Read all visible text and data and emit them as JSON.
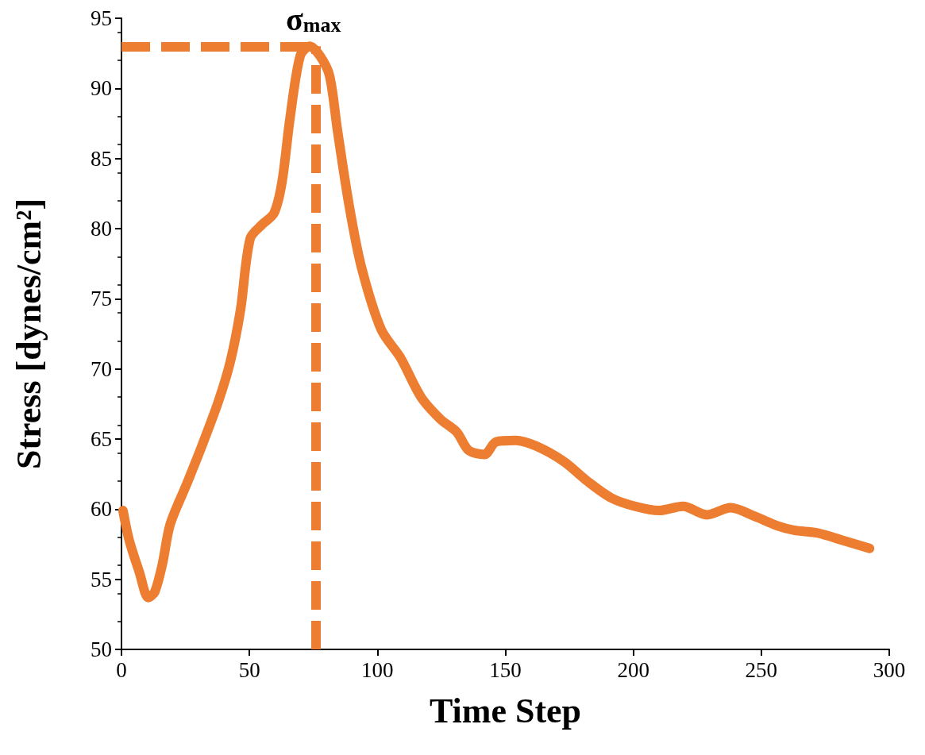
{
  "chart_data": {
    "type": "line",
    "xlabel": "Time Step",
    "ylabel": "Stress [dynes/cm²]",
    "x": [
      0.6,
      3,
      7,
      10.5,
      13,
      16,
      19,
      25.5,
      31.6,
      37.9,
      42.5,
      46.5,
      50.3,
      55,
      59.6,
      62.7,
      65.8,
      69.8,
      73.5,
      77.6,
      81.3,
      84.4,
      89,
      93.7,
      101.5,
      109,
      117,
      124.7,
      131,
      135.6,
      141.8,
      146.4,
      154,
      162,
      172.8,
      182,
      191.4,
      200.7,
      210,
      219.4,
      228.7,
      238,
      247.3,
      256.6,
      262.8,
      272,
      281.4,
      292.3
    ],
    "series": [
      {
        "color": "#ed7d31",
        "values": [
          59.9,
          57.8,
          55.5,
          53.7,
          54.1,
          56.1,
          58.9,
          61.8,
          64.6,
          67.7,
          70.5,
          74.2,
          79.3,
          80.3,
          81.1,
          83.3,
          87.8,
          92.3,
          93,
          92.3,
          90.9,
          87,
          81.6,
          77.3,
          72.8,
          70.8,
          68,
          66.4,
          65.5,
          64.2,
          63.9,
          64.8,
          64.9,
          64.5,
          63.4,
          62,
          60.8,
          60.2,
          59.9,
          60.2,
          59.6,
          60.1,
          59.5,
          58.8,
          58.5,
          58.3,
          57.8,
          57.2
        ]
      }
    ],
    "xlim": [
      0,
      300
    ],
    "xticks": [
      0,
      50,
      100,
      150,
      200,
      250,
      300
    ],
    "ylim": [
      50,
      95
    ],
    "yticks": [
      50,
      55,
      60,
      65,
      70,
      75,
      80,
      85,
      90,
      95
    ],
    "ref_lines": [
      {
        "axis": "y",
        "value": 93,
        "color": "#ed7d31",
        "line_style": "dashed"
      },
      {
        "axis": "x",
        "value": 76,
        "color": "#ed7d31",
        "line_style": "dashed"
      }
    ],
    "annotations": [
      {
        "text": "σ$_{max}$",
        "x": 75,
        "y": 93
      }
    ],
    "grid": false,
    "line_style": "solid"
  }
}
